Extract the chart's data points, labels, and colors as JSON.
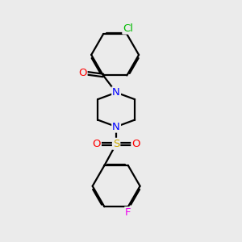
{
  "bg_color": "#ebebeb",
  "bond_color": "#000000",
  "bond_width": 1.6,
  "dbo": 0.055,
  "atom_colors": {
    "O": "#ff0000",
    "N": "#0000ff",
    "S": "#ccaa00",
    "Cl": "#00bb00",
    "F": "#ee00ee",
    "C": "#000000"
  },
  "font_size": 9.5
}
